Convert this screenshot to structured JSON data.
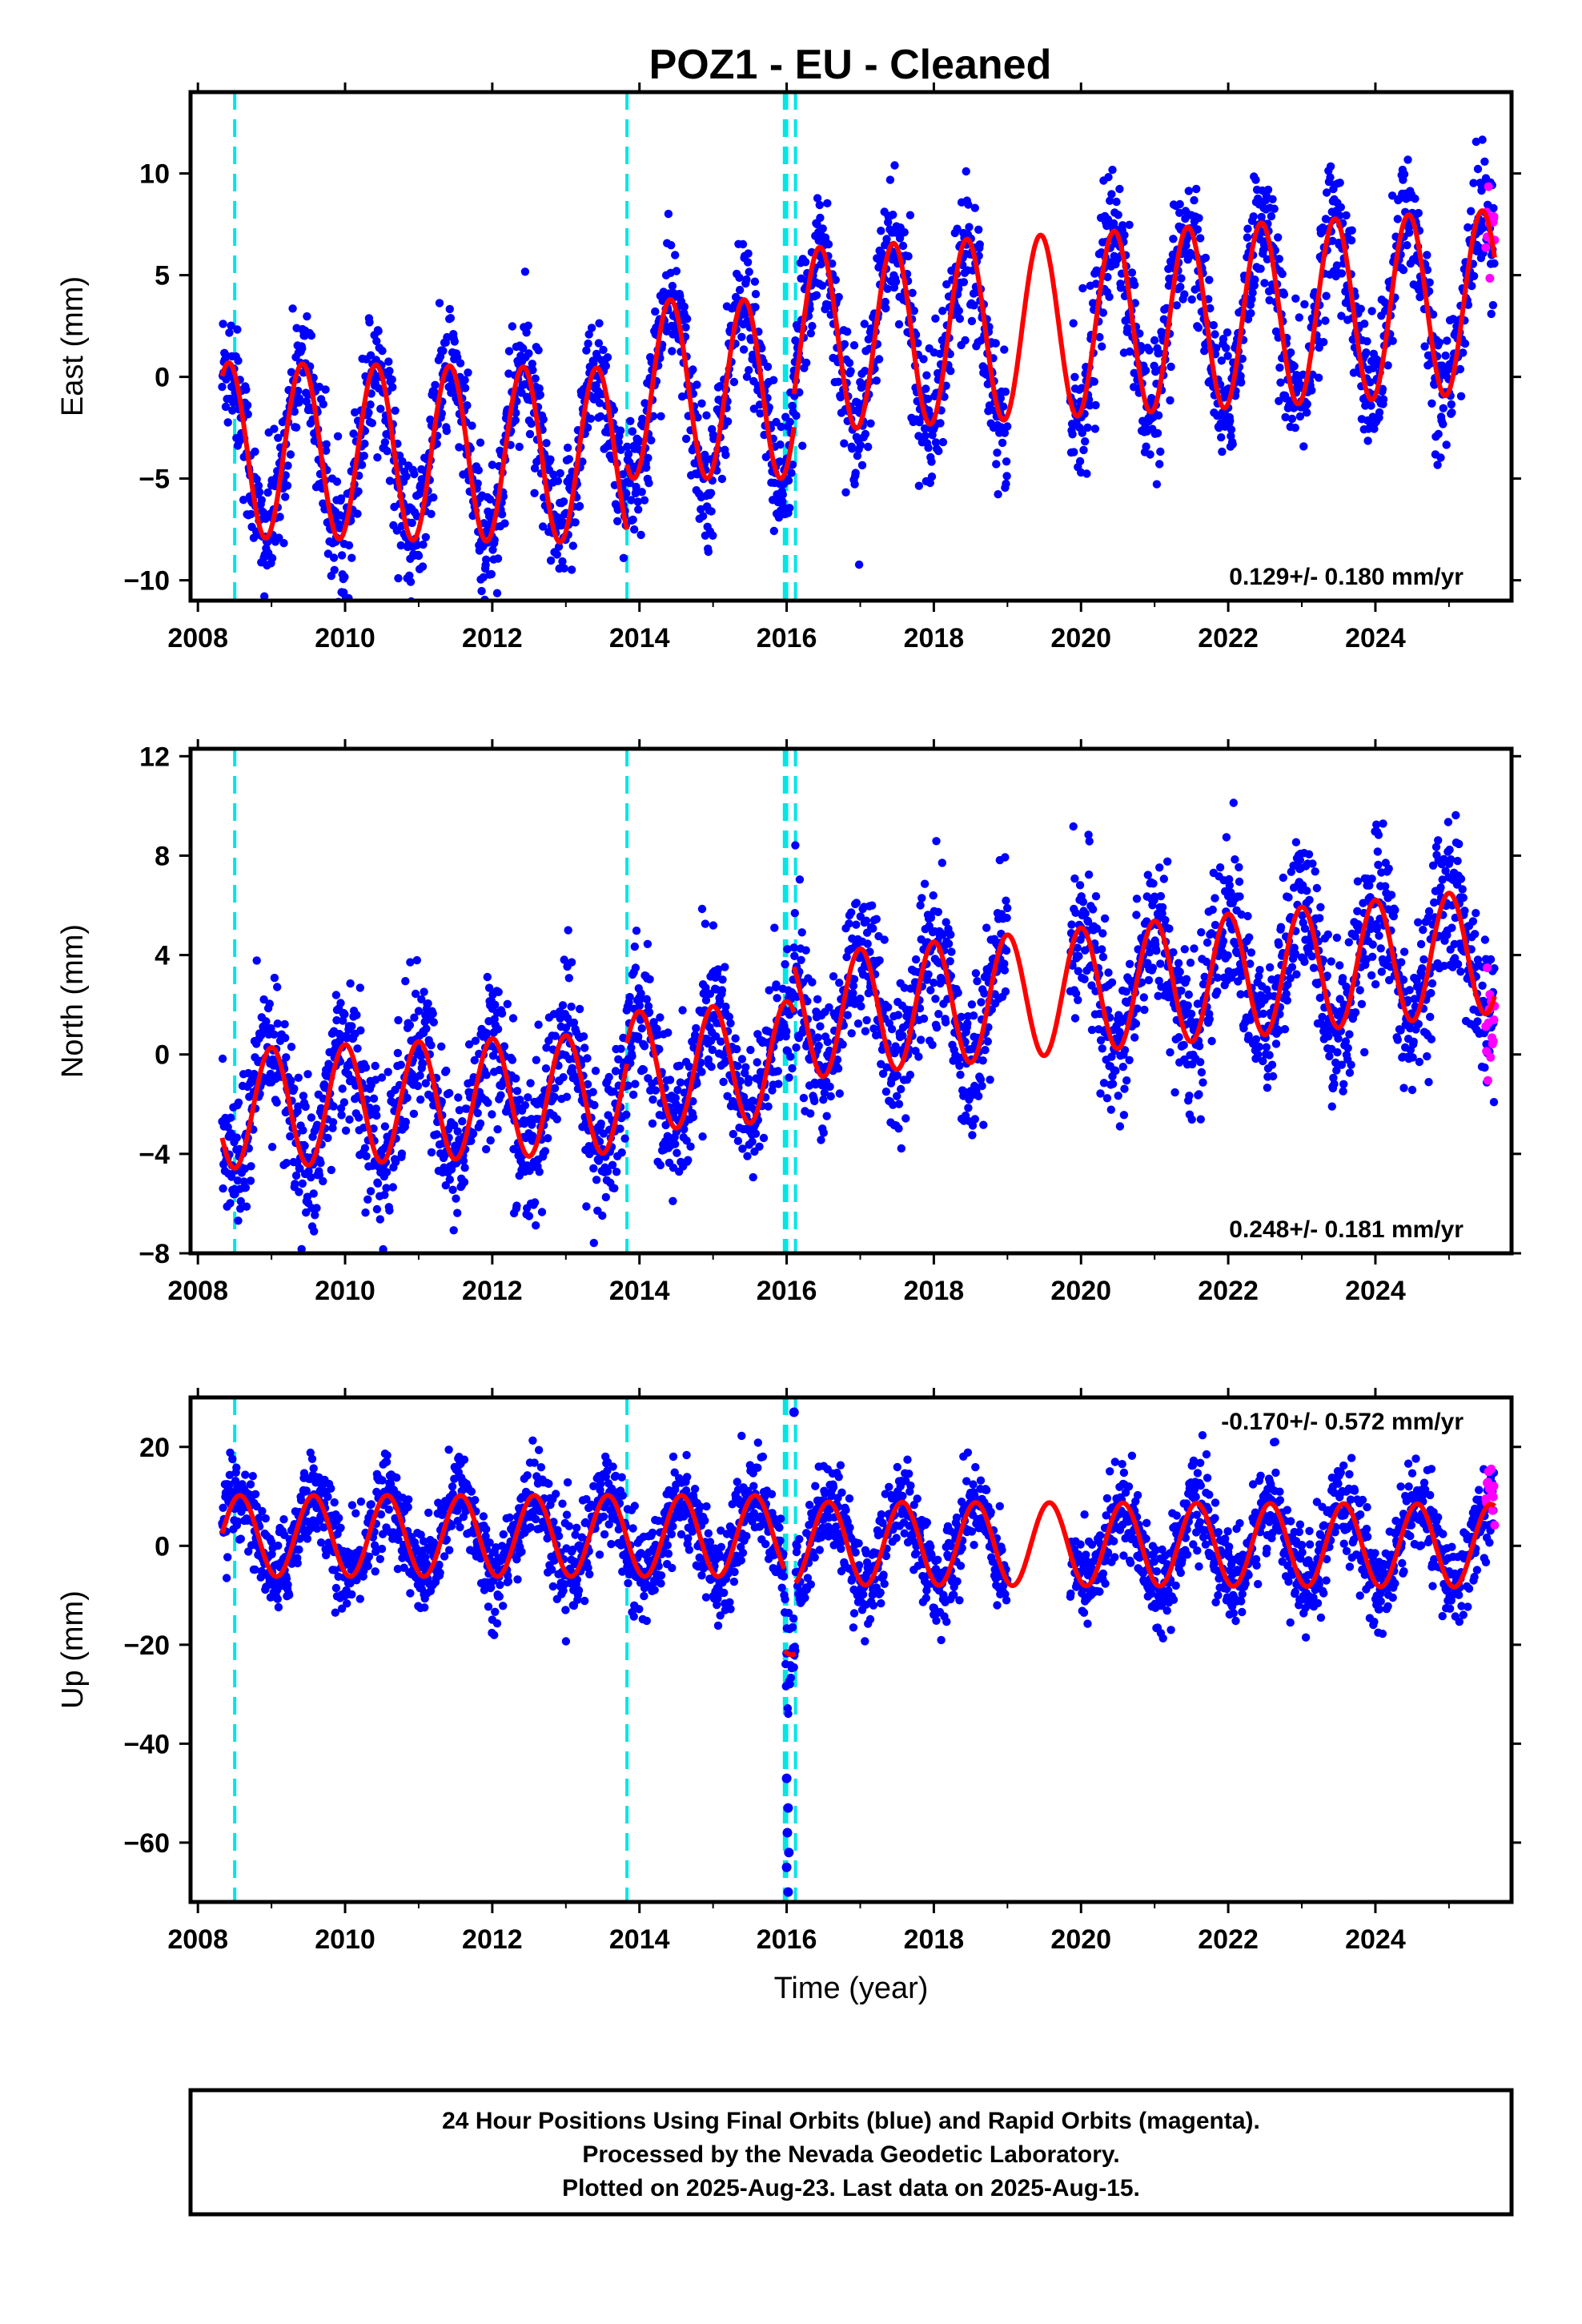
{
  "title": "POZ1  - EU - Cleaned",
  "caption": {
    "lines": [
      "24 Hour Positions Using Final Orbits (blue) and Rapid Orbits (magenta).",
      "Processed by the Nevada Geodetic Laboratory.",
      "Plotted on 2025-Aug-23. Last data on 2025-Aug-15."
    ]
  },
  "colors": {
    "final_orbits": "#0000ff",
    "rapid_orbits": "#ff00ff",
    "model": "#ff0000",
    "event_lines": "#00e5e5"
  },
  "chart_data": [
    {
      "type": "scatter",
      "ylabel": "East (mm)",
      "xlabel": "",
      "xlim": [
        2007.9,
        2025.85
      ],
      "ylim": [
        -11,
        14
      ],
      "xticks": [
        2008,
        2010,
        2012,
        2014,
        2016,
        2018,
        2020,
        2022,
        2024
      ],
      "yticks": [
        -10,
        -5,
        0,
        5,
        10
      ],
      "rate_label": "0.129+/- 0.180 mm/yr",
      "rate_position": "bottom-right",
      "event_lines": [
        2008.5,
        2013.83,
        2015.97,
        2016.0,
        2016.12
      ],
      "model_segments": [
        {
          "start": 2008.33,
          "end": 2013.83,
          "offset": -3.6,
          "trend": -0.05,
          "amp": 4.3,
          "phase": 2009.42
        },
        {
          "start": 2013.83,
          "end": 2016.1,
          "offset": -0.6,
          "trend": 0.0,
          "amp": 4.4,
          "phase": 2014.42
        },
        {
          "start": 2016.1,
          "end": 2025.62,
          "offset": 1.8,
          "trend": 0.2,
          "amp": 4.5,
          "phase": 2016.45
        }
      ],
      "scatter_gaps": [
        [
          2019.0,
          2019.85
        ]
      ],
      "scatter_noise": 1.6,
      "rapid_points": {
        "x_range": [
          2025.5,
          2025.62
        ],
        "y_center": 7.5,
        "spread": 1.8,
        "count": 14
      }
    },
    {
      "type": "scatter",
      "ylabel": "North (mm)",
      "xlabel": "",
      "xlim": [
        2007.9,
        2025.85
      ],
      "ylim": [
        -8,
        12.3
      ],
      "xticks": [
        2008,
        2010,
        2012,
        2014,
        2016,
        2018,
        2020,
        2022,
        2024
      ],
      "yticks": [
        -8,
        -4,
        0,
        4,
        8,
        12
      ],
      "rate_label": "0.248+/- 0.181 mm/yr",
      "rate_position": "bottom-right",
      "event_lines": [
        2008.5,
        2013.83,
        2015.97,
        2016.0,
        2016.12
      ],
      "model_segments": [
        {
          "start": 2008.33,
          "end": 2013.83,
          "offset": -2.2,
          "trend": 0.12,
          "amp": 2.4,
          "phase": 2009.0
        },
        {
          "start": 2013.83,
          "end": 2016.1,
          "offset": -0.7,
          "trend": 0.2,
          "amp": 2.4,
          "phase": 2014.0
        },
        {
          "start": 2016.1,
          "end": 2025.62,
          "offset": 1.5,
          "trend": 0.28,
          "amp": 2.5,
          "phase": 2017.0
        }
      ],
      "scatter_gaps": [
        [
          2019.0,
          2019.85
        ]
      ],
      "scatter_noise": 1.5,
      "rapid_points": {
        "x_range": [
          2025.5,
          2025.62
        ],
        "y_center": 0.5,
        "spread": 2.5,
        "count": 14
      }
    },
    {
      "type": "scatter",
      "ylabel": "Up (mm)",
      "xlabel": "Time (year)",
      "xlim": [
        2007.9,
        2025.85
      ],
      "ylim": [
        -72,
        30
      ],
      "xticks": [
        2008,
        2010,
        2012,
        2014,
        2016,
        2018,
        2020,
        2022,
        2024
      ],
      "yticks": [
        -60,
        -40,
        -20,
        0,
        20
      ],
      "rate_label": "-0.170+/- 0.572 mm/yr",
      "rate_position": "top-right",
      "event_lines": [
        2008.5,
        2013.83,
        2015.97,
        2016.0,
        2016.12
      ],
      "model_segments": [
        {
          "start": 2008.33,
          "end": 2015.97,
          "offset": 2.0,
          "trend": 0.0,
          "amp": 8.2,
          "phase": 2008.57
        },
        {
          "start": 2015.97,
          "end": 2016.12,
          "offset": -18.0,
          "trend": 0.0,
          "amp": 4.0,
          "phase": 2008.57
        },
        {
          "start": 2016.12,
          "end": 2025.62,
          "offset": 0.5,
          "trend": -0.05,
          "amp": 8.4,
          "phase": 2008.57
        }
      ],
      "scatter_gaps": [
        [
          2019.0,
          2019.85
        ]
      ],
      "scatter_noise": 4.5,
      "outliers": [
        {
          "x": 2016.0,
          "y": -47
        },
        {
          "x": 2016.02,
          "y": -53
        },
        {
          "x": 2016.01,
          "y": -58
        },
        {
          "x": 2016.03,
          "y": -62
        },
        {
          "x": 2016.0,
          "y": -65
        },
        {
          "x": 2016.02,
          "y": -70
        },
        {
          "x": 2016.1,
          "y": 27
        }
      ],
      "rapid_points": {
        "x_range": [
          2025.5,
          2025.62
        ],
        "y_center": 11,
        "spread": 5,
        "count": 14
      }
    }
  ]
}
